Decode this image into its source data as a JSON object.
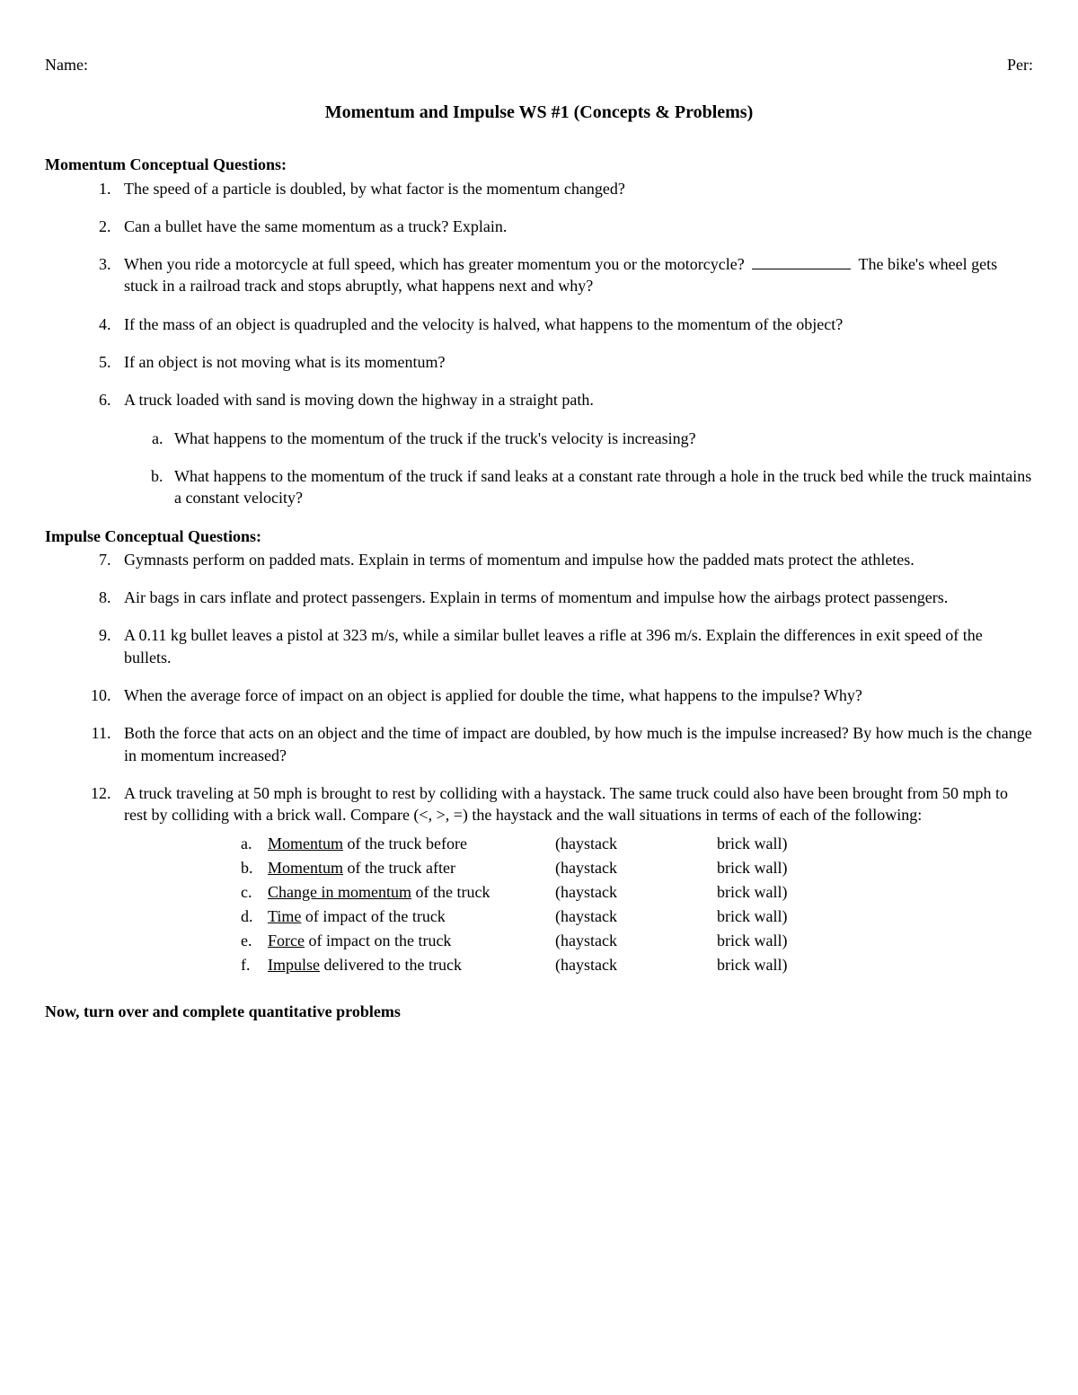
{
  "header": {
    "name_label": "Name:",
    "per_label": "Per:"
  },
  "title": "Momentum and Impulse WS #1 (Concepts & Problems)",
  "section1": {
    "heading": "Momentum Conceptual Questions:",
    "q1": "The speed of a particle is doubled, by what factor is the momentum changed?",
    "q2": "Can a bullet have the same momentum as a truck? Explain.",
    "q3a": "When you ride a motorcycle at full speed, which has greater momentum you or the motorcycle?",
    "q3b": "The bike's wheel gets stuck in a railroad track and stops abruptly, what happens next and why?",
    "q4": "If the mass of an object is quadrupled and the velocity is halved, what happens to the momentum of the object?",
    "q5": "If an object is not moving what is its momentum?",
    "q6": "A truck loaded with sand is moving down the highway in a straight path.",
    "q6a": "What happens to the momentum of the truck if the truck's velocity is increasing?",
    "q6b": "What happens to the momentum of the truck if sand leaks at a constant rate through a hole in the truck bed while the truck maintains a constant velocity?"
  },
  "section2": {
    "heading": "Impulse Conceptual Questions:",
    "q7": "Gymnasts perform on padded mats.  Explain in terms of momentum and impulse how the padded mats protect the athletes.",
    "q8": "Air bags in cars inflate and protect passengers.  Explain in terms of momentum and impulse how the airbags protect passengers.",
    "q9": "A 0.11 kg bullet leaves a pistol at 323 m/s, while a similar bullet leaves a rifle at 396 m/s.  Explain the differences in exit speed of the bullets.",
    "q10": "When the average force of impact on an object is applied for double the time, what happens to the impulse? Why?",
    "q11": "Both the force that acts on an object and the time of impact are doubled, by how much is the impulse increased? By how much is the change in momentum increased?",
    "q12": "A truck traveling at 50 mph is brought to rest by colliding with a haystack.  The same truck could also have been brought from 50 mph to rest by colliding with a brick wall.  Compare (<, >, =) the haystack and the wall situations in terms of each of the following:"
  },
  "compare": {
    "hay": "(haystack",
    "wall": "brick wall)",
    "rows": [
      {
        "letter": "a.",
        "u": "Momentum",
        "rest": " of the truck before"
      },
      {
        "letter": "b.",
        "u": "Momentum",
        "rest": " of the truck after"
      },
      {
        "letter": "c.",
        "u": "Change in momentum",
        "rest": " of the truck"
      },
      {
        "letter": "d.",
        "u": "Time",
        "rest": " of impact of the truck"
      },
      {
        "letter": "e.",
        "u": "Force",
        "rest": " of impact on the truck"
      },
      {
        "letter": "f.",
        "u": "Impulse",
        "rest": " delivered to the truck"
      }
    ]
  },
  "footer": "Now, turn over and complete quantitative problems"
}
